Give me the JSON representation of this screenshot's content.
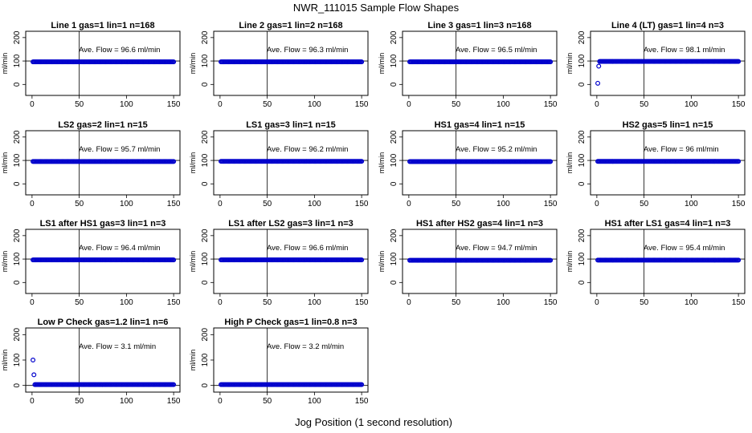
{
  "title": "NWR_111015  Sample Flow Shapes",
  "xlabel": "Jog Position (1 second resolution)",
  "colors": {
    "points": "#0000cc",
    "axes": "#000000",
    "background": "#ffffff"
  },
  "chart_data": [
    {
      "type": "scatter",
      "title": "Line 1 gas=1 lin=1 n=168",
      "annotation": "Ave. Flow = 96.6  ml/min",
      "ylabel": "ml/min",
      "xlim": [
        0,
        150
      ],
      "ylim": [
        -40,
        220
      ],
      "xticks": [
        0,
        50,
        100,
        150
      ],
      "yticks": [
        0,
        100,
        200
      ],
      "hline": 100,
      "vline": 50,
      "series": [
        {
          "x": [
            1,
            150
          ],
          "y": [
            96.6,
            96.6
          ],
          "mode": "dense-run"
        }
      ]
    },
    {
      "type": "scatter",
      "title": "Line 2 gas=1 lin=2 n=168",
      "annotation": "Ave. Flow = 96.3  ml/min",
      "ylabel": "ml/min",
      "xlim": [
        0,
        150
      ],
      "ylim": [
        -40,
        220
      ],
      "xticks": [
        0,
        50,
        100,
        150
      ],
      "yticks": [
        0,
        100,
        200
      ],
      "hline": 100,
      "vline": 50,
      "series": [
        {
          "x": [
            1,
            150
          ],
          "y": [
            96.3,
            96.3
          ],
          "mode": "dense-run"
        }
      ]
    },
    {
      "type": "scatter",
      "title": "Line 3 gas=1 lin=3 n=168",
      "annotation": "Ave. Flow = 96.5  ml/min",
      "ylabel": "ml/min",
      "xlim": [
        0,
        150
      ],
      "ylim": [
        -40,
        220
      ],
      "xticks": [
        0,
        50,
        100,
        150
      ],
      "yticks": [
        0,
        100,
        200
      ],
      "hline": 100,
      "vline": 50,
      "series": [
        {
          "x": [
            1,
            150
          ],
          "y": [
            96.5,
            96.5
          ],
          "mode": "dense-run"
        }
      ]
    },
    {
      "type": "scatter",
      "title": "Line 4 (LT) gas=1 lin=4 n=3",
      "annotation": "Ave. Flow = 98.1  ml/min",
      "ylabel": "ml/min",
      "xlim": [
        0,
        150
      ],
      "ylim": [
        -40,
        220
      ],
      "xticks": [
        0,
        50,
        100,
        150
      ],
      "yticks": [
        0,
        100,
        200
      ],
      "hline": 100,
      "vline": 50,
      "series": [
        {
          "x": [
            1,
            2,
            150
          ],
          "y": [
            5,
            78,
            98.1
          ],
          "mode": "dense-run-from-3"
        }
      ]
    },
    {
      "type": "scatter",
      "title": "LS2 gas=2 lin=1 n=15",
      "annotation": "Ave. Flow = 95.7  ml/min",
      "ylabel": "ml/min",
      "xlim": [
        0,
        150
      ],
      "ylim": [
        -40,
        220
      ],
      "xticks": [
        0,
        50,
        100,
        150
      ],
      "yticks": [
        0,
        100,
        200
      ],
      "hline": 100,
      "vline": 50,
      "series": [
        {
          "x": [
            1,
            150
          ],
          "y": [
            95.7,
            95.7
          ],
          "mode": "dense-run"
        }
      ]
    },
    {
      "type": "scatter",
      "title": "LS1 gas=3 lin=1 n=15",
      "annotation": "Ave. Flow = 96.2  ml/min",
      "ylabel": "ml/min",
      "xlim": [
        0,
        150
      ],
      "ylim": [
        -40,
        220
      ],
      "xticks": [
        0,
        50,
        100,
        150
      ],
      "yticks": [
        0,
        100,
        200
      ],
      "hline": 100,
      "vline": 50,
      "series": [
        {
          "x": [
            1,
            150
          ],
          "y": [
            96.2,
            96.2
          ],
          "mode": "dense-run"
        }
      ]
    },
    {
      "type": "scatter",
      "title": "HS1 gas=4 lin=1 n=15",
      "annotation": "Ave. Flow = 95.2  ml/min",
      "ylabel": "ml/min",
      "xlim": [
        0,
        150
      ],
      "ylim": [
        -40,
        220
      ],
      "xticks": [
        0,
        50,
        100,
        150
      ],
      "yticks": [
        0,
        100,
        200
      ],
      "hline": 100,
      "vline": 50,
      "series": [
        {
          "x": [
            1,
            150
          ],
          "y": [
            95.2,
            95.2
          ],
          "mode": "dense-run"
        }
      ]
    },
    {
      "type": "scatter",
      "title": "HS2 gas=5 lin=1 n=15",
      "annotation": "Ave. Flow = 96  ml/min",
      "ylabel": "ml/min",
      "xlim": [
        0,
        150
      ],
      "ylim": [
        -40,
        220
      ],
      "xticks": [
        0,
        50,
        100,
        150
      ],
      "yticks": [
        0,
        100,
        200
      ],
      "hline": 100,
      "vline": 50,
      "series": [
        {
          "x": [
            1,
            150
          ],
          "y": [
            96,
            96
          ],
          "mode": "dense-run"
        }
      ]
    },
    {
      "type": "scatter",
      "title": "LS1 after HS1 gas=3 lin=1 n=3",
      "annotation": "Ave. Flow = 96.4  ml/min",
      "ylabel": "ml/min",
      "xlim": [
        0,
        150
      ],
      "ylim": [
        -40,
        220
      ],
      "xticks": [
        0,
        50,
        100,
        150
      ],
      "yticks": [
        0,
        100,
        200
      ],
      "hline": 100,
      "vline": 50,
      "series": [
        {
          "x": [
            1,
            150
          ],
          "y": [
            96.4,
            96.4
          ],
          "mode": "dense-run"
        }
      ]
    },
    {
      "type": "scatter",
      "title": "LS1 after LS2 gas=3 lin=1 n=3",
      "annotation": "Ave. Flow = 96.6  ml/min",
      "ylabel": "ml/min",
      "xlim": [
        0,
        150
      ],
      "ylim": [
        -40,
        220
      ],
      "xticks": [
        0,
        50,
        100,
        150
      ],
      "yticks": [
        0,
        100,
        200
      ],
      "hline": 100,
      "vline": 50,
      "series": [
        {
          "x": [
            1,
            150
          ],
          "y": [
            96.6,
            96.6
          ],
          "mode": "dense-run"
        }
      ]
    },
    {
      "type": "scatter",
      "title": "HS1 after HS2 gas=4 lin=1 n=3",
      "annotation": "Ave. Flow = 94.7  ml/min",
      "ylabel": "ml/min",
      "xlim": [
        0,
        150
      ],
      "ylim": [
        -40,
        220
      ],
      "xticks": [
        0,
        50,
        100,
        150
      ],
      "yticks": [
        0,
        100,
        200
      ],
      "hline": 100,
      "vline": 50,
      "series": [
        {
          "x": [
            1,
            150
          ],
          "y": [
            94.7,
            94.7
          ],
          "mode": "dense-run"
        }
      ]
    },
    {
      "type": "scatter",
      "title": "HS1 after LS1 gas=4 lin=1 n=3",
      "annotation": "Ave. Flow = 95.4  ml/min",
      "ylabel": "ml/min",
      "xlim": [
        0,
        150
      ],
      "ylim": [
        -40,
        220
      ],
      "xticks": [
        0,
        50,
        100,
        150
      ],
      "yticks": [
        0,
        100,
        200
      ],
      "hline": 100,
      "vline": 50,
      "series": [
        {
          "x": [
            1,
            150
          ],
          "y": [
            95.4,
            95.4
          ],
          "mode": "dense-run"
        }
      ]
    },
    {
      "type": "scatter",
      "title": "Low P Check gas=1.2 lin=1 n=6",
      "annotation": "Ave. Flow = 3.1  ml/min",
      "ylabel": "ml/min",
      "xlim": [
        0,
        150
      ],
      "ylim": [
        -20,
        220
      ],
      "xticks": [
        0,
        50,
        100,
        150
      ],
      "yticks": [
        0,
        100,
        200
      ],
      "hline": 0,
      "vline": 50,
      "series": [
        {
          "x": [
            1,
            2,
            150
          ],
          "y": [
            100,
            42,
            3.1
          ],
          "mode": "dense-run-from-3"
        }
      ]
    },
    {
      "type": "scatter",
      "title": "High P Check gas=1 lin=0.8 n=3",
      "annotation": "Ave. Flow = 3.2  ml/min",
      "ylabel": "ml/min",
      "xlim": [
        0,
        150
      ],
      "ylim": [
        -20,
        220
      ],
      "xticks": [
        0,
        50,
        100,
        150
      ],
      "yticks": [
        0,
        100,
        200
      ],
      "hline": 0,
      "vline": 50,
      "series": [
        {
          "x": [
            1,
            150
          ],
          "y": [
            3.2,
            3.2
          ],
          "mode": "dense-run"
        }
      ]
    }
  ]
}
